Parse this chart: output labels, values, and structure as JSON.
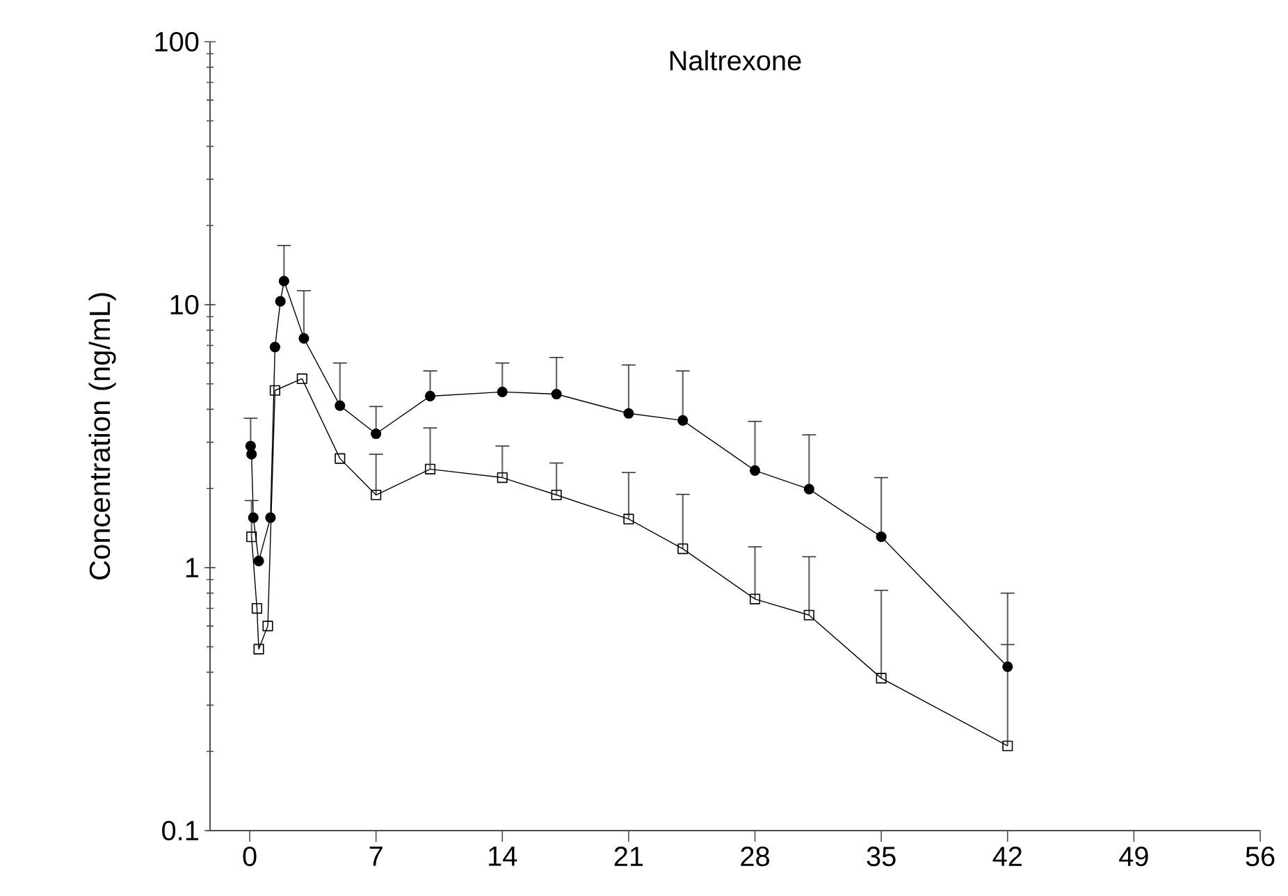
{
  "chart_data": {
    "type": "line",
    "title": "Naltrexone",
    "ylabel": "Concentration (ng/mL)",
    "log": "y",
    "xlim": [
      -2.2,
      56
    ],
    "xticks": [
      0,
      7,
      14,
      21,
      28,
      35,
      42,
      49,
      56
    ],
    "ylim": [
      0.1,
      100
    ],
    "yticks": [
      0.1,
      1,
      10,
      100
    ],
    "grid": false,
    "line_style": "solid",
    "series": [
      {
        "color": "#000000",
        "marker": "circle",
        "x": [
          0.05,
          0.1,
          0.2,
          0.5,
          1.15,
          1.4,
          1.7,
          1.9,
          3,
          5,
          7,
          10,
          14,
          17,
          21,
          24,
          28,
          31,
          35,
          42
        ],
        "values": [
          2.9,
          2.7,
          1.55,
          1.06,
          1.55,
          6.9,
          10.3,
          12.3,
          7.45,
          4.13,
          3.23,
          4.49,
          4.66,
          4.57,
          3.86,
          3.63,
          2.34,
          1.99,
          1.31,
          0.42
        ],
        "errors": [
          [
            2.9,
            3.7
          ],
          null,
          null,
          null,
          null,
          null,
          null,
          [
            12.3,
            16.8
          ],
          [
            7.45,
            11.3
          ],
          [
            4.13,
            6
          ],
          [
            3.23,
            4.1
          ],
          [
            4.49,
            5.6
          ],
          [
            4.66,
            6
          ],
          [
            4.57,
            6.3
          ],
          [
            3.86,
            5.9
          ],
          [
            3.63,
            5.6
          ],
          [
            2.34,
            3.6
          ],
          [
            1.99,
            3.2
          ],
          [
            1.31,
            2.2
          ],
          [
            0.42,
            0.8
          ]
        ]
      },
      {
        "color": "#000000",
        "marker": "square",
        "x": [
          0.1,
          0.4,
          0.5,
          1.0,
          1.4,
          2.9,
          5,
          7,
          10,
          14,
          17,
          21,
          24,
          28,
          31,
          35,
          42
        ],
        "values": [
          1.31,
          0.7,
          0.49,
          0.6,
          4.72,
          5.23,
          2.6,
          1.89,
          2.37,
          2.2,
          1.89,
          1.53,
          1.18,
          0.76,
          0.66,
          0.38,
          0.21
        ],
        "errors": [
          [
            1.31,
            1.8
          ],
          null,
          null,
          null,
          null,
          null,
          null,
          [
            1.89,
            2.7
          ],
          [
            2.37,
            3.4
          ],
          [
            2.2,
            2.9
          ],
          [
            1.89,
            2.5
          ],
          [
            1.53,
            2.3
          ],
          [
            1.18,
            1.9
          ],
          [
            0.76,
            1.2
          ],
          [
            0.66,
            1.1
          ],
          [
            0.38,
            0.82
          ],
          [
            0.21,
            0.51
          ]
        ]
      }
    ]
  }
}
